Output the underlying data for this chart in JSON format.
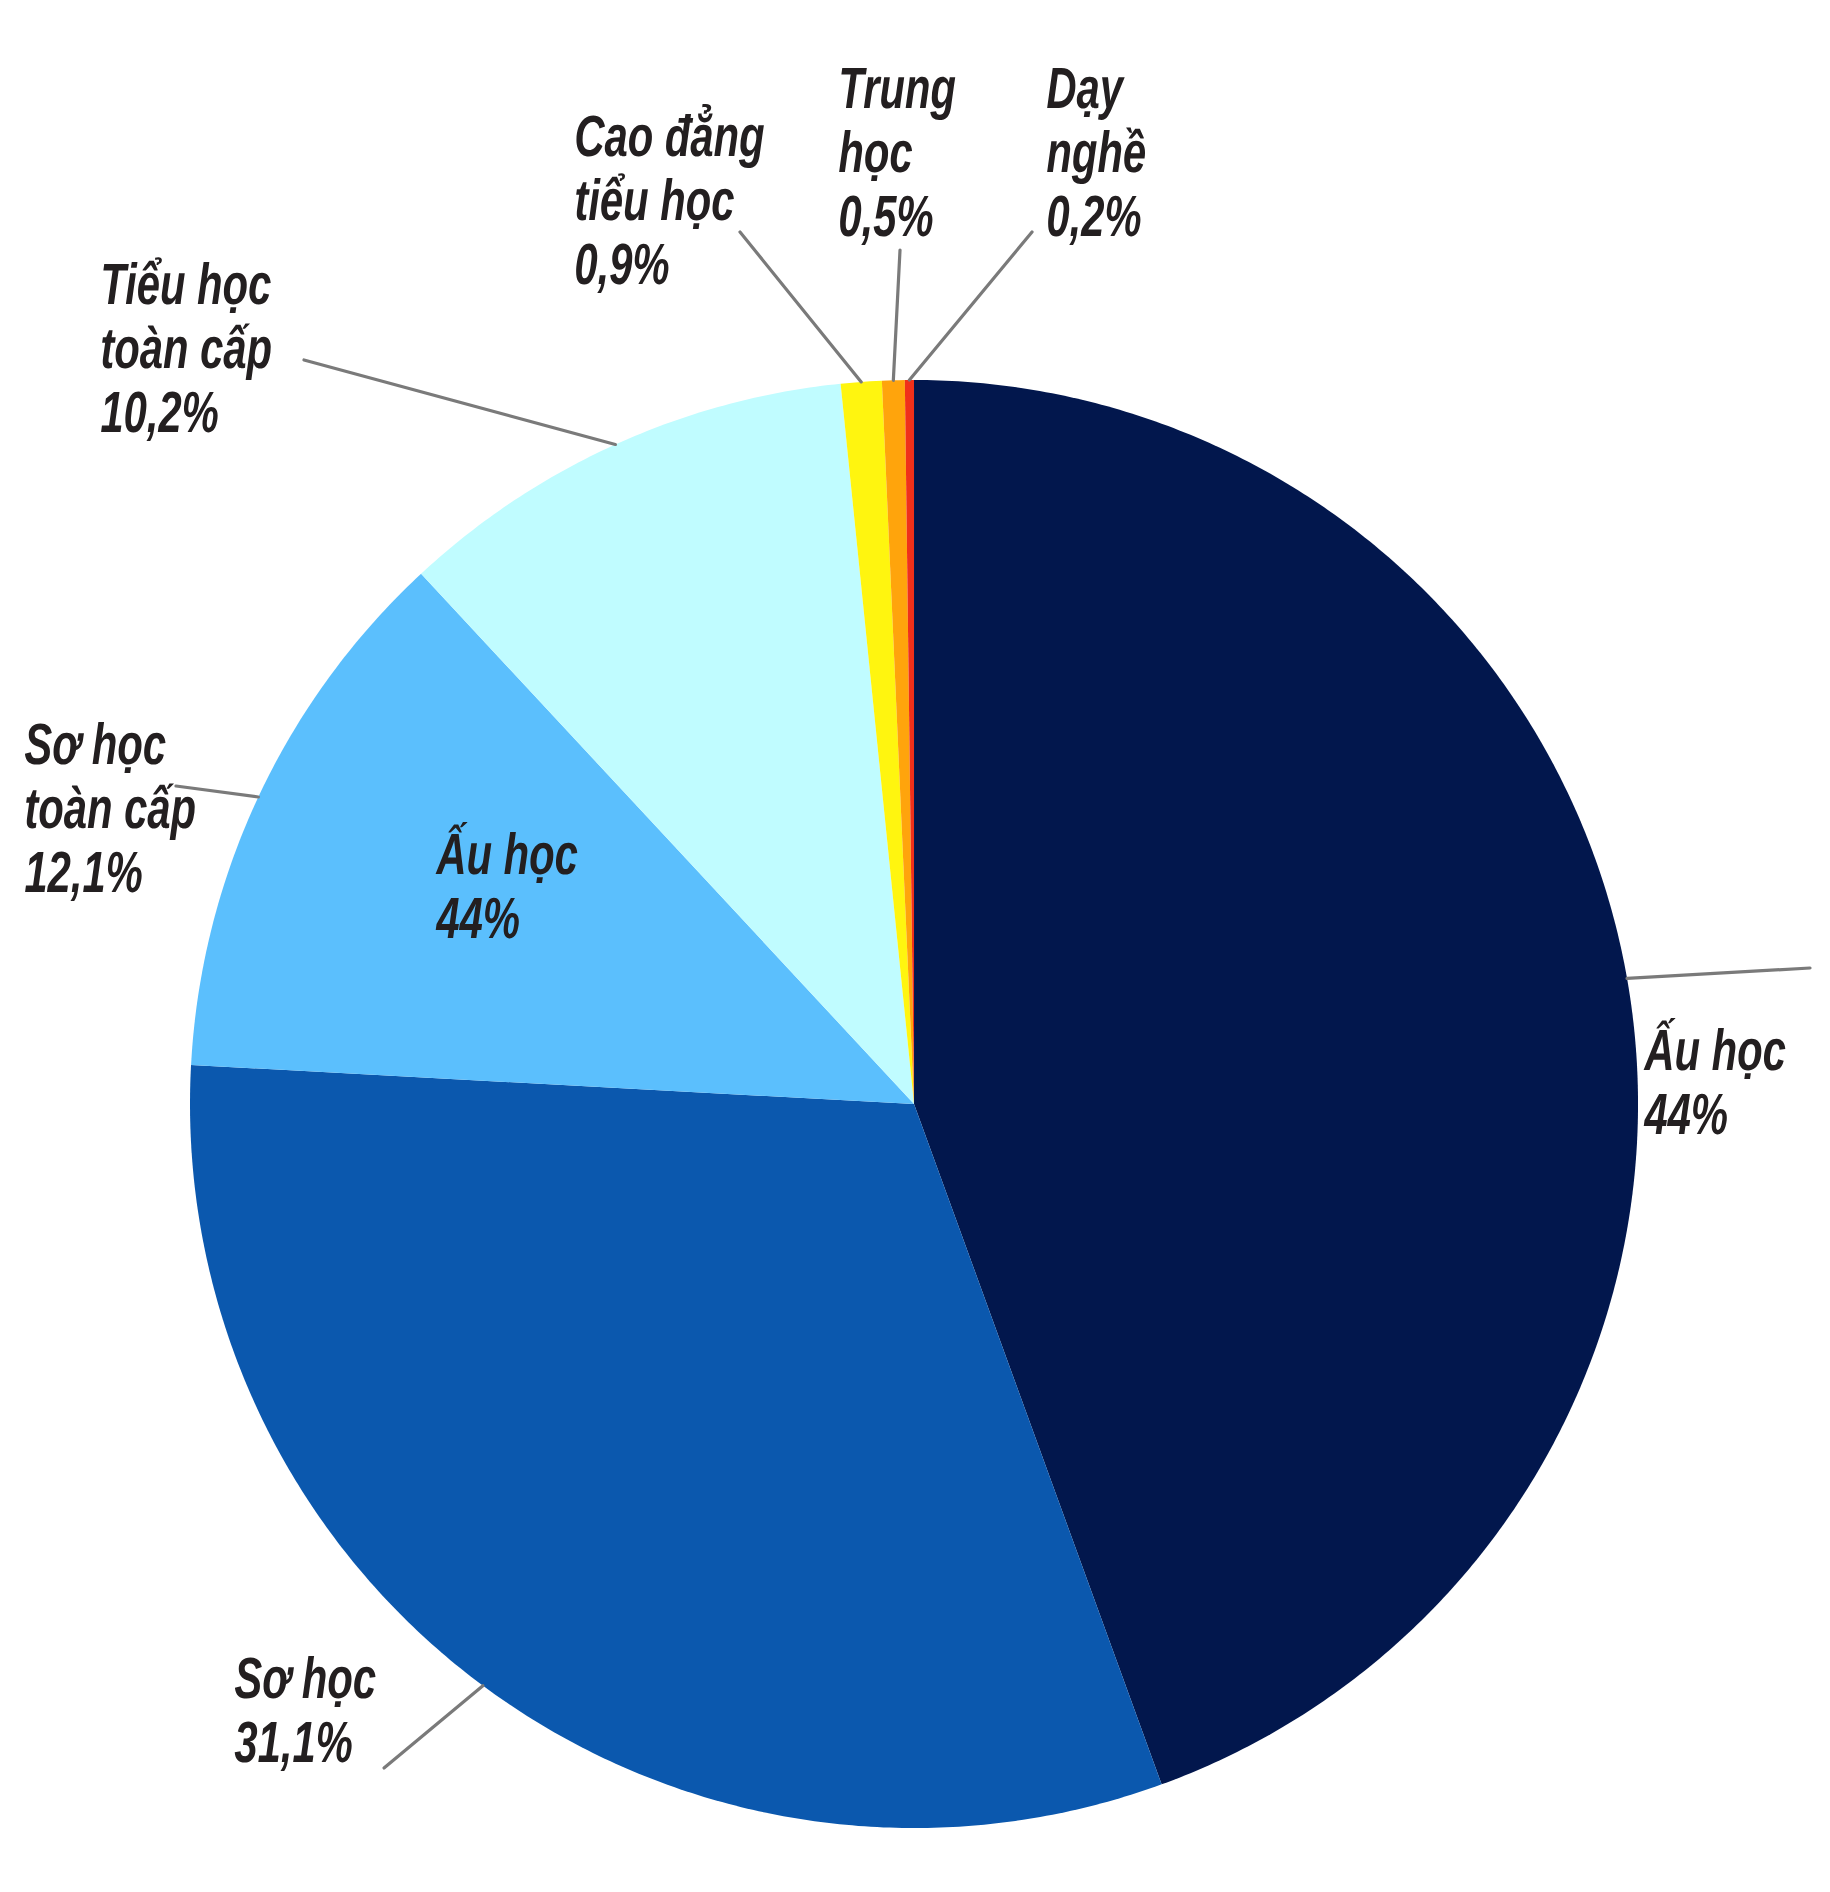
{
  "chart_data": {
    "type": "pie",
    "categories": [
      "Ấu học",
      "Sơ học",
      "Sơ học toàn cấp",
      "Tiểu học toàn cấp",
      "Cao đẳng tiểu học",
      "Trung học",
      "Dạy nghề"
    ],
    "values": [
      44,
      31.1,
      12.1,
      10.2,
      0.9,
      0.5,
      0.2
    ],
    "value_labels": [
      "44%",
      "31,1%",
      "12,1%",
      "10,2%",
      "0,9%",
      "0,5%",
      "0,2%"
    ],
    "colors": [
      "#02174d",
      "#0b58ae",
      "#5bbffd",
      "#c0fcff",
      "#fff50f",
      "#ffa40c",
      "#f0301a"
    ],
    "annotations": [
      "Ấu học 44%"
    ]
  }
}
